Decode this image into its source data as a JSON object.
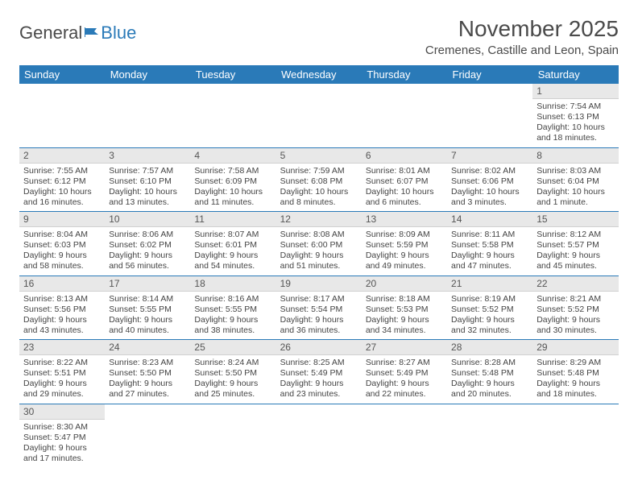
{
  "logo": {
    "text_general": "General",
    "text_blue": "Blue"
  },
  "header": {
    "month_title": "November 2025",
    "location": "Cremenes, Castille and Leon, Spain"
  },
  "colors": {
    "header_bg": "#2a7ab8",
    "header_text": "#ffffff",
    "daynum_bg": "#e8e8e8",
    "row_border": "#2a7ab8",
    "body_text": "#444444"
  },
  "weekdays": [
    "Sunday",
    "Monday",
    "Tuesday",
    "Wednesday",
    "Thursday",
    "Friday",
    "Saturday"
  ],
  "weeks": [
    [
      null,
      null,
      null,
      null,
      null,
      null,
      {
        "n": "1",
        "sunrise": "Sunrise: 7:54 AM",
        "sunset": "Sunset: 6:13 PM",
        "daylight": "Daylight: 10 hours and 18 minutes."
      }
    ],
    [
      {
        "n": "2",
        "sunrise": "Sunrise: 7:55 AM",
        "sunset": "Sunset: 6:12 PM",
        "daylight": "Daylight: 10 hours and 16 minutes."
      },
      {
        "n": "3",
        "sunrise": "Sunrise: 7:57 AM",
        "sunset": "Sunset: 6:10 PM",
        "daylight": "Daylight: 10 hours and 13 minutes."
      },
      {
        "n": "4",
        "sunrise": "Sunrise: 7:58 AM",
        "sunset": "Sunset: 6:09 PM",
        "daylight": "Daylight: 10 hours and 11 minutes."
      },
      {
        "n": "5",
        "sunrise": "Sunrise: 7:59 AM",
        "sunset": "Sunset: 6:08 PM",
        "daylight": "Daylight: 10 hours and 8 minutes."
      },
      {
        "n": "6",
        "sunrise": "Sunrise: 8:01 AM",
        "sunset": "Sunset: 6:07 PM",
        "daylight": "Daylight: 10 hours and 6 minutes."
      },
      {
        "n": "7",
        "sunrise": "Sunrise: 8:02 AM",
        "sunset": "Sunset: 6:06 PM",
        "daylight": "Daylight: 10 hours and 3 minutes."
      },
      {
        "n": "8",
        "sunrise": "Sunrise: 8:03 AM",
        "sunset": "Sunset: 6:04 PM",
        "daylight": "Daylight: 10 hours and 1 minute."
      }
    ],
    [
      {
        "n": "9",
        "sunrise": "Sunrise: 8:04 AM",
        "sunset": "Sunset: 6:03 PM",
        "daylight": "Daylight: 9 hours and 58 minutes."
      },
      {
        "n": "10",
        "sunrise": "Sunrise: 8:06 AM",
        "sunset": "Sunset: 6:02 PM",
        "daylight": "Daylight: 9 hours and 56 minutes."
      },
      {
        "n": "11",
        "sunrise": "Sunrise: 8:07 AM",
        "sunset": "Sunset: 6:01 PM",
        "daylight": "Daylight: 9 hours and 54 minutes."
      },
      {
        "n": "12",
        "sunrise": "Sunrise: 8:08 AM",
        "sunset": "Sunset: 6:00 PM",
        "daylight": "Daylight: 9 hours and 51 minutes."
      },
      {
        "n": "13",
        "sunrise": "Sunrise: 8:09 AM",
        "sunset": "Sunset: 5:59 PM",
        "daylight": "Daylight: 9 hours and 49 minutes."
      },
      {
        "n": "14",
        "sunrise": "Sunrise: 8:11 AM",
        "sunset": "Sunset: 5:58 PM",
        "daylight": "Daylight: 9 hours and 47 minutes."
      },
      {
        "n": "15",
        "sunrise": "Sunrise: 8:12 AM",
        "sunset": "Sunset: 5:57 PM",
        "daylight": "Daylight: 9 hours and 45 minutes."
      }
    ],
    [
      {
        "n": "16",
        "sunrise": "Sunrise: 8:13 AM",
        "sunset": "Sunset: 5:56 PM",
        "daylight": "Daylight: 9 hours and 43 minutes."
      },
      {
        "n": "17",
        "sunrise": "Sunrise: 8:14 AM",
        "sunset": "Sunset: 5:55 PM",
        "daylight": "Daylight: 9 hours and 40 minutes."
      },
      {
        "n": "18",
        "sunrise": "Sunrise: 8:16 AM",
        "sunset": "Sunset: 5:55 PM",
        "daylight": "Daylight: 9 hours and 38 minutes."
      },
      {
        "n": "19",
        "sunrise": "Sunrise: 8:17 AM",
        "sunset": "Sunset: 5:54 PM",
        "daylight": "Daylight: 9 hours and 36 minutes."
      },
      {
        "n": "20",
        "sunrise": "Sunrise: 8:18 AM",
        "sunset": "Sunset: 5:53 PM",
        "daylight": "Daylight: 9 hours and 34 minutes."
      },
      {
        "n": "21",
        "sunrise": "Sunrise: 8:19 AM",
        "sunset": "Sunset: 5:52 PM",
        "daylight": "Daylight: 9 hours and 32 minutes."
      },
      {
        "n": "22",
        "sunrise": "Sunrise: 8:21 AM",
        "sunset": "Sunset: 5:52 PM",
        "daylight": "Daylight: 9 hours and 30 minutes."
      }
    ],
    [
      {
        "n": "23",
        "sunrise": "Sunrise: 8:22 AM",
        "sunset": "Sunset: 5:51 PM",
        "daylight": "Daylight: 9 hours and 29 minutes."
      },
      {
        "n": "24",
        "sunrise": "Sunrise: 8:23 AM",
        "sunset": "Sunset: 5:50 PM",
        "daylight": "Daylight: 9 hours and 27 minutes."
      },
      {
        "n": "25",
        "sunrise": "Sunrise: 8:24 AM",
        "sunset": "Sunset: 5:50 PM",
        "daylight": "Daylight: 9 hours and 25 minutes."
      },
      {
        "n": "26",
        "sunrise": "Sunrise: 8:25 AM",
        "sunset": "Sunset: 5:49 PM",
        "daylight": "Daylight: 9 hours and 23 minutes."
      },
      {
        "n": "27",
        "sunrise": "Sunrise: 8:27 AM",
        "sunset": "Sunset: 5:49 PM",
        "daylight": "Daylight: 9 hours and 22 minutes."
      },
      {
        "n": "28",
        "sunrise": "Sunrise: 8:28 AM",
        "sunset": "Sunset: 5:48 PM",
        "daylight": "Daylight: 9 hours and 20 minutes."
      },
      {
        "n": "29",
        "sunrise": "Sunrise: 8:29 AM",
        "sunset": "Sunset: 5:48 PM",
        "daylight": "Daylight: 9 hours and 18 minutes."
      }
    ],
    [
      {
        "n": "30",
        "sunrise": "Sunrise: 8:30 AM",
        "sunset": "Sunset: 5:47 PM",
        "daylight": "Daylight: 9 hours and 17 minutes."
      },
      null,
      null,
      null,
      null,
      null,
      null
    ]
  ]
}
